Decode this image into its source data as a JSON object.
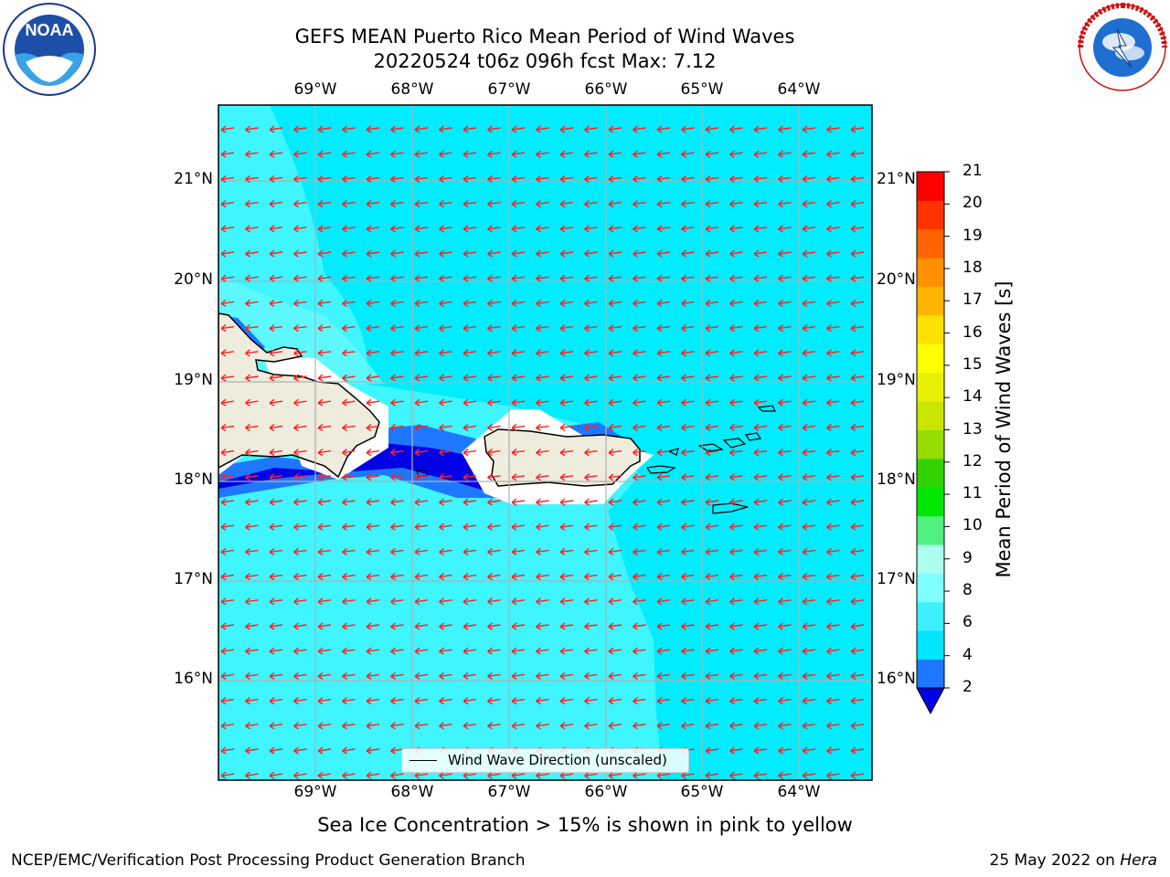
{
  "header": {
    "title_line1": "GEFS MEAN Puerto Rico Mean Period of Wind Waves",
    "title_line2": "20220524 t06z 096h fcst   Max: 7.12"
  },
  "logos": {
    "left": {
      "icon": "noaa-logo",
      "text": "NOAA"
    },
    "right": {
      "icon": "nws-logo",
      "text": "NATIONAL WEATHER SERVICE"
    }
  },
  "map": {
    "lon_labels": [
      "69°W",
      "68°W",
      "67°W",
      "66°W",
      "65°W",
      "64°W"
    ],
    "lat_labels": [
      "21°N",
      "20°N",
      "19°N",
      "18°N",
      "17°N",
      "16°N"
    ],
    "lat_labels_right": [
      "21°N",
      "20°N",
      "19°N",
      "18°N",
      "17°N",
      "16°N"
    ],
    "legend_label": "Wind Wave Direction (unscaled)",
    "colors": {
      "land": "#eeecdc",
      "arrow": "#ff2222",
      "grid": "#b0b0b0"
    }
  },
  "colorbar": {
    "label": "Mean Period of Wind Waves [s]",
    "ticks": [
      "21",
      "20",
      "19",
      "18",
      "17",
      "16",
      "15",
      "14",
      "13",
      "12",
      "11",
      "10",
      "9",
      "8",
      "6",
      "4",
      "2"
    ],
    "colors": [
      "#0000e6",
      "#1e78ff",
      "#00e6ff",
      "#3cf0ff",
      "#80ffff",
      "#aaffee",
      "#50f080",
      "#00e600",
      "#32d200",
      "#96dc00",
      "#c8e600",
      "#e6f000",
      "#ffff00",
      "#ffe000",
      "#ffb400",
      "#ff9000",
      "#ff6400",
      "#ff3200",
      "#ff0000"
    ]
  },
  "footer": {
    "sea_ice_note": "Sea Ice Concentration > 15% is shown in pink to yellow",
    "left": "NCEP/EMC/Verification Post Processing Product Generation Branch",
    "right_date": "25 May 2022 on ",
    "right_host": "Hera"
  }
}
